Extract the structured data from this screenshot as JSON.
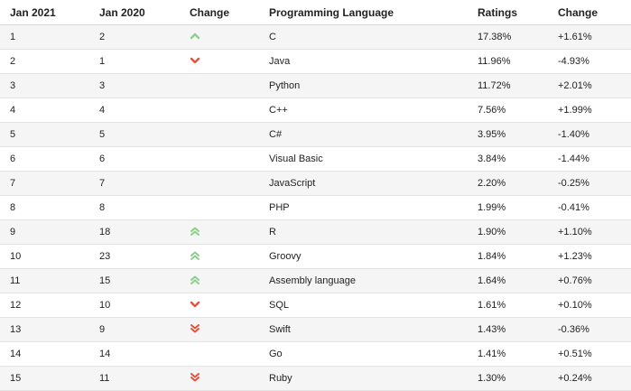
{
  "headers": {
    "jan2021": "Jan 2021",
    "jan2020": "Jan 2020",
    "change": "Change",
    "language": "Programming Language",
    "ratings": "Ratings",
    "rating_change": "Change"
  },
  "colors": {
    "up": "#8ccf8c",
    "down": "#e4543d"
  },
  "rows": [
    {
      "rank2021": "1",
      "rank2020": "2",
      "trend": "up",
      "language": "C",
      "rating": "17.38%",
      "delta": "+1.61%"
    },
    {
      "rank2021": "2",
      "rank2020": "1",
      "trend": "down",
      "language": "Java",
      "rating": "11.96%",
      "delta": "-4.93%"
    },
    {
      "rank2021": "3",
      "rank2020": "3",
      "trend": "none",
      "language": "Python",
      "rating": "11.72%",
      "delta": "+2.01%"
    },
    {
      "rank2021": "4",
      "rank2020": "4",
      "trend": "none",
      "language": "C++",
      "rating": "7.56%",
      "delta": "+1.99%"
    },
    {
      "rank2021": "5",
      "rank2020": "5",
      "trend": "none",
      "language": "C#",
      "rating": "3.95%",
      "delta": "-1.40%"
    },
    {
      "rank2021": "6",
      "rank2020": "6",
      "trend": "none",
      "language": "Visual Basic",
      "rating": "3.84%",
      "delta": "-1.44%"
    },
    {
      "rank2021": "7",
      "rank2020": "7",
      "trend": "none",
      "language": "JavaScript",
      "rating": "2.20%",
      "delta": "-0.25%"
    },
    {
      "rank2021": "8",
      "rank2020": "8",
      "trend": "none",
      "language": "PHP",
      "rating": "1.99%",
      "delta": "-0.41%"
    },
    {
      "rank2021": "9",
      "rank2020": "18",
      "trend": "double-up",
      "language": "R",
      "rating": "1.90%",
      "delta": "+1.10%"
    },
    {
      "rank2021": "10",
      "rank2020": "23",
      "trend": "double-up",
      "language": "Groovy",
      "rating": "1.84%",
      "delta": "+1.23%"
    },
    {
      "rank2021": "11",
      "rank2020": "15",
      "trend": "double-up",
      "language": "Assembly language",
      "rating": "1.64%",
      "delta": "+0.76%"
    },
    {
      "rank2021": "12",
      "rank2020": "10",
      "trend": "down",
      "language": "SQL",
      "rating": "1.61%",
      "delta": "+0.10%"
    },
    {
      "rank2021": "13",
      "rank2020": "9",
      "trend": "double-down",
      "language": "Swift",
      "rating": "1.43%",
      "delta": "-0.36%"
    },
    {
      "rank2021": "14",
      "rank2020": "14",
      "trend": "none",
      "language": "Go",
      "rating": "1.41%",
      "delta": "+0.51%"
    },
    {
      "rank2021": "15",
      "rank2020": "11",
      "trend": "double-down",
      "language": "Ruby",
      "rating": "1.30%",
      "delta": "+0.24%"
    }
  ]
}
